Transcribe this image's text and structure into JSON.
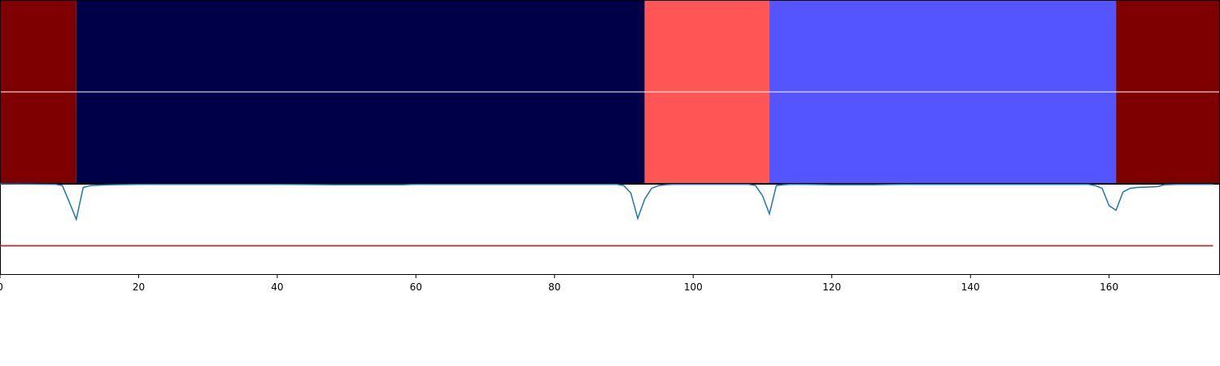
{
  "chart_data": [
    {
      "type": "heatmap",
      "xlim": [
        0,
        176
      ],
      "rows": 2,
      "segments": [
        {
          "start": 0,
          "end": 11,
          "color": "#7f0000"
        },
        {
          "start": 11,
          "end": 93,
          "color": "#000048"
        },
        {
          "start": 93,
          "end": 111,
          "color": "#ff5555"
        },
        {
          "start": 111,
          "end": 161,
          "color": "#5555ff"
        },
        {
          "start": 161,
          "end": 176,
          "color": "#7f0000"
        }
      ]
    },
    {
      "type": "line",
      "xlim": [
        0,
        176
      ],
      "ylim": [
        -1.0,
        0.0
      ],
      "xticks": [
        0,
        20,
        40,
        60,
        80,
        100,
        120,
        140,
        160
      ],
      "threshold": {
        "value": -0.68,
        "color": "#ff0000"
      },
      "series": [
        {
          "color": "#1f77b4",
          "x": [
            0,
            8,
            9,
            10,
            11,
            12,
            13,
            14,
            16,
            20,
            40,
            48,
            58,
            60,
            80,
            89,
            90,
            91,
            92,
            93,
            94,
            95,
            96,
            97,
            100,
            108,
            109,
            110,
            111,
            112,
            113,
            114,
            116,
            120,
            126,
            130,
            140,
            150,
            157,
            158,
            159,
            160,
            161,
            162,
            163,
            164,
            166,
            167,
            168,
            170,
            175
          ],
          "y": [
            0.0,
            -0.005,
            -0.02,
            -0.2,
            -0.39,
            -0.04,
            -0.02,
            -0.015,
            -0.01,
            -0.005,
            -0.005,
            -0.01,
            -0.01,
            -0.005,
            -0.005,
            -0.005,
            -0.02,
            -0.1,
            -0.38,
            -0.17,
            -0.05,
            -0.02,
            -0.01,
            -0.005,
            -0.005,
            -0.005,
            -0.02,
            -0.13,
            -0.33,
            -0.02,
            -0.01,
            -0.005,
            -0.005,
            -0.01,
            -0.01,
            -0.005,
            -0.005,
            -0.005,
            -0.005,
            -0.02,
            -0.05,
            -0.24,
            -0.29,
            -0.09,
            -0.05,
            -0.04,
            -0.035,
            -0.03,
            -0.01,
            -0.005,
            -0.005
          ]
        }
      ]
    }
  ]
}
